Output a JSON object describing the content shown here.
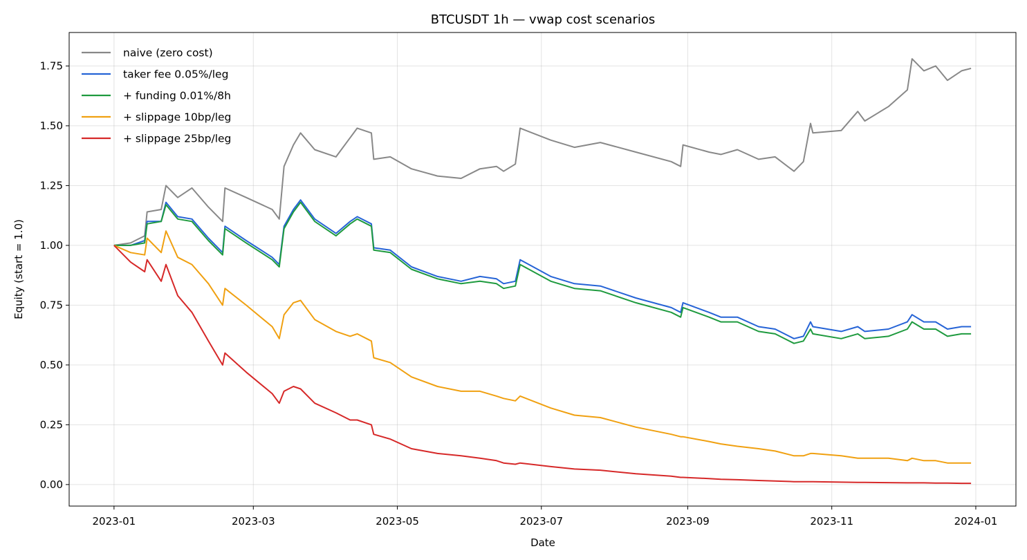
{
  "chart_data": {
    "type": "line",
    "title": "BTCUSDT 1h — vwap cost scenarios",
    "xlabel": "Date",
    "ylabel": "Equity (start = 1.0)",
    "xlim": [
      "2022-12-13",
      "2024-01-18"
    ],
    "ylim": [
      -0.09,
      1.89
    ],
    "x_ticks": [
      {
        "date": "2023-01-01",
        "label": "2023-01"
      },
      {
        "date": "2023-03-01",
        "label": "2023-03"
      },
      {
        "date": "2023-05-01",
        "label": "2023-05"
      },
      {
        "date": "2023-07-01",
        "label": "2023-07"
      },
      {
        "date": "2023-09-01",
        "label": "2023-09"
      },
      {
        "date": "2023-11-01",
        "label": "2023-11"
      },
      {
        "date": "2024-01-01",
        "label": "2024-01"
      }
    ],
    "y_ticks": [
      {
        "value": 0,
        "label": "0.00"
      },
      {
        "value": 0.25,
        "label": "0.25"
      },
      {
        "value": 0.5,
        "label": "0.50"
      },
      {
        "value": 0.75,
        "label": "0.75"
      },
      {
        "value": 1.0,
        "label": "1.00"
      },
      {
        "value": 1.25,
        "label": "1.25"
      },
      {
        "value": 1.5,
        "label": "1.50"
      },
      {
        "value": 1.75,
        "label": "1.75"
      }
    ],
    "grid": true,
    "legend_position": "top-left",
    "series": [
      {
        "name": "naive (zero cost)",
        "color": "#888888",
        "x": [
          "2023-01-01",
          "2023-01-08",
          "2023-01-14",
          "2023-01-15",
          "2023-01-21",
          "2023-01-23",
          "2023-01-28",
          "2023-02-03",
          "2023-02-10",
          "2023-02-16",
          "2023-02-17",
          "2023-02-26",
          "2023-03-09",
          "2023-03-12",
          "2023-03-14",
          "2023-03-18",
          "2023-03-21",
          "2023-03-27",
          "2023-04-05",
          "2023-04-11",
          "2023-04-14",
          "2023-04-20",
          "2023-04-21",
          "2023-04-28",
          "2023-05-07",
          "2023-05-18",
          "2023-05-28",
          "2023-06-05",
          "2023-06-12",
          "2023-06-15",
          "2023-06-20",
          "2023-06-22",
          "2023-07-05",
          "2023-07-15",
          "2023-07-26",
          "2023-08-10",
          "2023-08-25",
          "2023-08-29",
          "2023-08-30",
          "2023-09-10",
          "2023-09-15",
          "2023-09-22",
          "2023-10-01",
          "2023-10-08",
          "2023-10-16",
          "2023-10-20",
          "2023-10-23",
          "2023-10-24",
          "2023-11-05",
          "2023-11-12",
          "2023-11-15",
          "2023-11-25",
          "2023-12-03",
          "2023-12-05",
          "2023-12-10",
          "2023-12-15",
          "2023-12-20",
          "2023-12-26",
          "2023-12-30"
        ],
        "values": [
          1.0,
          1.01,
          1.04,
          1.14,
          1.15,
          1.25,
          1.2,
          1.24,
          1.16,
          1.1,
          1.24,
          1.2,
          1.15,
          1.11,
          1.33,
          1.42,
          1.47,
          1.4,
          1.37,
          1.45,
          1.49,
          1.47,
          1.36,
          1.37,
          1.32,
          1.29,
          1.28,
          1.32,
          1.33,
          1.31,
          1.34,
          1.49,
          1.44,
          1.41,
          1.43,
          1.39,
          1.35,
          1.33,
          1.42,
          1.39,
          1.38,
          1.4,
          1.36,
          1.37,
          1.31,
          1.35,
          1.51,
          1.47,
          1.48,
          1.56,
          1.52,
          1.58,
          1.65,
          1.78,
          1.73,
          1.75,
          1.69,
          1.73,
          1.74
        ]
      },
      {
        "name": "taker fee 0.05%/leg",
        "color": "#2563d6",
        "x": [
          "2023-01-01",
          "2023-01-08",
          "2023-01-14",
          "2023-01-15",
          "2023-01-21",
          "2023-01-23",
          "2023-01-28",
          "2023-02-03",
          "2023-02-10",
          "2023-02-16",
          "2023-02-17",
          "2023-02-26",
          "2023-03-09",
          "2023-03-12",
          "2023-03-14",
          "2023-03-18",
          "2023-03-21",
          "2023-03-27",
          "2023-04-05",
          "2023-04-11",
          "2023-04-14",
          "2023-04-20",
          "2023-04-21",
          "2023-04-28",
          "2023-05-07",
          "2023-05-18",
          "2023-05-28",
          "2023-06-05",
          "2023-06-12",
          "2023-06-15",
          "2023-06-20",
          "2023-06-22",
          "2023-07-05",
          "2023-07-15",
          "2023-07-26",
          "2023-08-10",
          "2023-08-25",
          "2023-08-29",
          "2023-08-30",
          "2023-09-10",
          "2023-09-15",
          "2023-09-22",
          "2023-10-01",
          "2023-10-08",
          "2023-10-16",
          "2023-10-20",
          "2023-10-23",
          "2023-10-24",
          "2023-11-05",
          "2023-11-12",
          "2023-11-15",
          "2023-11-25",
          "2023-12-03",
          "2023-12-05",
          "2023-12-10",
          "2023-12-15",
          "2023-12-20",
          "2023-12-26",
          "2023-12-30"
        ],
        "values": [
          1.0,
          1.0,
          1.02,
          1.1,
          1.1,
          1.18,
          1.12,
          1.11,
          1.03,
          0.97,
          1.08,
          1.02,
          0.95,
          0.92,
          1.08,
          1.15,
          1.19,
          1.11,
          1.05,
          1.1,
          1.12,
          1.09,
          0.99,
          0.98,
          0.91,
          0.87,
          0.85,
          0.87,
          0.86,
          0.84,
          0.85,
          0.94,
          0.87,
          0.84,
          0.83,
          0.78,
          0.74,
          0.72,
          0.76,
          0.72,
          0.7,
          0.7,
          0.66,
          0.65,
          0.61,
          0.62,
          0.68,
          0.66,
          0.64,
          0.66,
          0.64,
          0.65,
          0.68,
          0.71,
          0.68,
          0.68,
          0.65,
          0.66,
          0.66
        ]
      },
      {
        "name": "+ funding 0.01%/8h",
        "color": "#1e9a3e",
        "x": [
          "2023-01-01",
          "2023-01-08",
          "2023-01-14",
          "2023-01-15",
          "2023-01-21",
          "2023-01-23",
          "2023-01-28",
          "2023-02-03",
          "2023-02-10",
          "2023-02-16",
          "2023-02-17",
          "2023-02-26",
          "2023-03-09",
          "2023-03-12",
          "2023-03-14",
          "2023-03-18",
          "2023-03-21",
          "2023-03-27",
          "2023-04-05",
          "2023-04-11",
          "2023-04-14",
          "2023-04-20",
          "2023-04-21",
          "2023-04-28",
          "2023-05-07",
          "2023-05-18",
          "2023-05-28",
          "2023-06-05",
          "2023-06-12",
          "2023-06-15",
          "2023-06-20",
          "2023-06-22",
          "2023-07-05",
          "2023-07-15",
          "2023-07-26",
          "2023-08-10",
          "2023-08-25",
          "2023-08-29",
          "2023-08-30",
          "2023-09-10",
          "2023-09-15",
          "2023-09-22",
          "2023-10-01",
          "2023-10-08",
          "2023-10-16",
          "2023-10-20",
          "2023-10-23",
          "2023-10-24",
          "2023-11-05",
          "2023-11-12",
          "2023-11-15",
          "2023-11-25",
          "2023-12-03",
          "2023-12-05",
          "2023-12-10",
          "2023-12-15",
          "2023-12-20",
          "2023-12-26",
          "2023-12-30"
        ],
        "values": [
          1.0,
          1.0,
          1.01,
          1.09,
          1.1,
          1.17,
          1.11,
          1.1,
          1.02,
          0.96,
          1.07,
          1.01,
          0.94,
          0.91,
          1.07,
          1.14,
          1.18,
          1.1,
          1.04,
          1.09,
          1.11,
          1.08,
          0.98,
          0.97,
          0.9,
          0.86,
          0.84,
          0.85,
          0.84,
          0.82,
          0.83,
          0.92,
          0.85,
          0.82,
          0.81,
          0.76,
          0.72,
          0.7,
          0.74,
          0.7,
          0.68,
          0.68,
          0.64,
          0.63,
          0.59,
          0.6,
          0.65,
          0.63,
          0.61,
          0.63,
          0.61,
          0.62,
          0.65,
          0.68,
          0.65,
          0.65,
          0.62,
          0.63,
          0.63
        ]
      },
      {
        "name": "+ slippage 10bp/leg",
        "color": "#f0a010",
        "x": [
          "2023-01-01",
          "2023-01-08",
          "2023-01-14",
          "2023-01-15",
          "2023-01-21",
          "2023-01-23",
          "2023-01-28",
          "2023-02-03",
          "2023-02-10",
          "2023-02-16",
          "2023-02-17",
          "2023-02-26",
          "2023-03-09",
          "2023-03-12",
          "2023-03-14",
          "2023-03-18",
          "2023-03-21",
          "2023-03-27",
          "2023-04-05",
          "2023-04-11",
          "2023-04-14",
          "2023-04-20",
          "2023-04-21",
          "2023-04-28",
          "2023-05-07",
          "2023-05-18",
          "2023-05-28",
          "2023-06-05",
          "2023-06-12",
          "2023-06-15",
          "2023-06-20",
          "2023-06-22",
          "2023-07-05",
          "2023-07-15",
          "2023-07-26",
          "2023-08-10",
          "2023-08-25",
          "2023-08-29",
          "2023-08-30",
          "2023-09-10",
          "2023-09-15",
          "2023-09-22",
          "2023-10-01",
          "2023-10-08",
          "2023-10-16",
          "2023-10-20",
          "2023-10-23",
          "2023-10-24",
          "2023-11-05",
          "2023-11-12",
          "2023-11-15",
          "2023-11-25",
          "2023-12-03",
          "2023-12-05",
          "2023-12-10",
          "2023-12-15",
          "2023-12-20",
          "2023-12-26",
          "2023-12-30"
        ],
        "values": [
          1.0,
          0.97,
          0.96,
          1.03,
          0.97,
          1.06,
          0.95,
          0.92,
          0.84,
          0.75,
          0.82,
          0.75,
          0.66,
          0.61,
          0.71,
          0.76,
          0.77,
          0.69,
          0.64,
          0.62,
          0.63,
          0.6,
          0.53,
          0.51,
          0.45,
          0.41,
          0.39,
          0.39,
          0.37,
          0.36,
          0.35,
          0.37,
          0.32,
          0.29,
          0.28,
          0.24,
          0.21,
          0.2,
          0.2,
          0.18,
          0.17,
          0.16,
          0.15,
          0.14,
          0.12,
          0.12,
          0.13,
          0.13,
          0.12,
          0.11,
          0.11,
          0.11,
          0.1,
          0.11,
          0.1,
          0.1,
          0.09,
          0.09,
          0.09
        ]
      },
      {
        "name": "+ slippage 25bp/leg",
        "color": "#d62828",
        "x": [
          "2023-01-01",
          "2023-01-08",
          "2023-01-14",
          "2023-01-15",
          "2023-01-21",
          "2023-01-23",
          "2023-01-28",
          "2023-02-03",
          "2023-02-10",
          "2023-02-16",
          "2023-02-17",
          "2023-02-26",
          "2023-03-09",
          "2023-03-12",
          "2023-03-14",
          "2023-03-18",
          "2023-03-21",
          "2023-03-27",
          "2023-04-05",
          "2023-04-11",
          "2023-04-14",
          "2023-04-20",
          "2023-04-21",
          "2023-04-28",
          "2023-05-07",
          "2023-05-18",
          "2023-05-28",
          "2023-06-05",
          "2023-06-12",
          "2023-06-15",
          "2023-06-20",
          "2023-06-22",
          "2023-07-05",
          "2023-07-15",
          "2023-07-26",
          "2023-08-10",
          "2023-08-25",
          "2023-08-29",
          "2023-08-30",
          "2023-09-10",
          "2023-09-15",
          "2023-09-22",
          "2023-10-01",
          "2023-10-08",
          "2023-10-16",
          "2023-10-20",
          "2023-10-23",
          "2023-10-24",
          "2023-11-05",
          "2023-11-12",
          "2023-11-15",
          "2023-11-25",
          "2023-12-03",
          "2023-12-05",
          "2023-12-10",
          "2023-12-15",
          "2023-12-20",
          "2023-12-26",
          "2023-12-30"
        ],
        "values": [
          1.0,
          0.93,
          0.89,
          0.94,
          0.85,
          0.92,
          0.79,
          0.72,
          0.6,
          0.5,
          0.55,
          0.47,
          0.38,
          0.34,
          0.39,
          0.41,
          0.4,
          0.34,
          0.3,
          0.27,
          0.27,
          0.25,
          0.21,
          0.19,
          0.15,
          0.13,
          0.12,
          0.11,
          0.1,
          0.09,
          0.085,
          0.09,
          0.075,
          0.065,
          0.06,
          0.045,
          0.035,
          0.03,
          0.03,
          0.025,
          0.022,
          0.02,
          0.017,
          0.015,
          0.012,
          0.012,
          0.012,
          0.012,
          0.01,
          0.009,
          0.009,
          0.008,
          0.007,
          0.007,
          0.007,
          0.006,
          0.006,
          0.005,
          0.005
        ]
      }
    ]
  }
}
